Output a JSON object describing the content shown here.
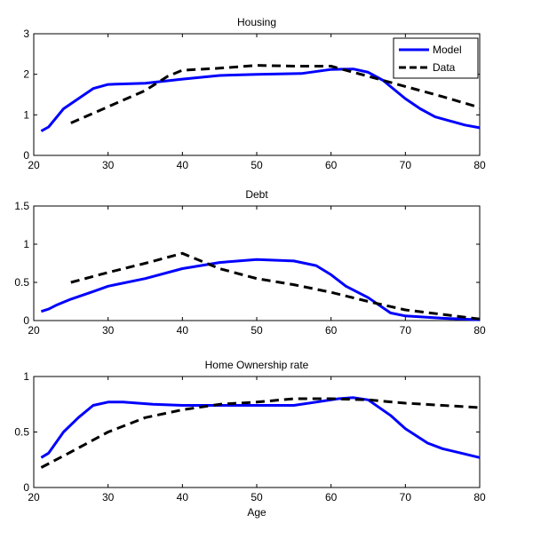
{
  "chart_data": [
    {
      "type": "line",
      "title": "Housing",
      "xlabel": "",
      "ylabel": "",
      "xlim": [
        20,
        80
      ],
      "ylim": [
        0,
        3
      ],
      "xticks": [
        20,
        30,
        40,
        50,
        60,
        70,
        80
      ],
      "yticks": [
        0,
        1,
        2,
        3
      ],
      "grid": false,
      "legend": "top-right",
      "series": [
        {
          "name": "Model",
          "color": "#0000ff",
          "style": "solid",
          "x": [
            21,
            22,
            24,
            26,
            28,
            30,
            35,
            40,
            45,
            50,
            56,
            60,
            63,
            65,
            67,
            70,
            72,
            74,
            76,
            78,
            80
          ],
          "y": [
            0.6,
            0.7,
            1.15,
            1.4,
            1.65,
            1.75,
            1.78,
            1.88,
            1.97,
            2.0,
            2.02,
            2.12,
            2.13,
            2.05,
            1.85,
            1.4,
            1.15,
            0.95,
            0.85,
            0.75,
            0.68
          ]
        },
        {
          "name": "Data",
          "color": "#000000",
          "style": "dashed",
          "x": [
            25,
            30,
            35,
            38,
            40,
            45,
            50,
            55,
            60,
            63,
            66,
            70,
            75,
            80
          ],
          "y": [
            0.8,
            1.2,
            1.6,
            1.95,
            2.1,
            2.15,
            2.22,
            2.2,
            2.2,
            2.05,
            1.9,
            1.7,
            1.45,
            1.18
          ]
        }
      ]
    },
    {
      "type": "line",
      "title": "Debt",
      "xlabel": "",
      "ylabel": "",
      "xlim": [
        20,
        80
      ],
      "ylim": [
        0,
        1.5
      ],
      "xticks": [
        20,
        30,
        40,
        50,
        60,
        70,
        80
      ],
      "yticks": [
        0,
        0.5,
        1,
        1.5
      ],
      "grid": false,
      "series": [
        {
          "color": "#0000ff",
          "style": "solid",
          "x": [
            21,
            22,
            23,
            25,
            28,
            30,
            35,
            40,
            45,
            50,
            55,
            58,
            60,
            62,
            65,
            68,
            70,
            75,
            80
          ],
          "y": [
            0.12,
            0.15,
            0.2,
            0.28,
            0.38,
            0.45,
            0.55,
            0.68,
            0.76,
            0.8,
            0.78,
            0.72,
            0.6,
            0.45,
            0.3,
            0.1,
            0.06,
            0.03,
            0.01
          ]
        },
        {
          "color": "#000000",
          "style": "dashed",
          "x": [
            25,
            30,
            35,
            40,
            45,
            50,
            55,
            60,
            65,
            70,
            75,
            80
          ],
          "y": [
            0.5,
            0.63,
            0.75,
            0.88,
            0.68,
            0.55,
            0.47,
            0.37,
            0.25,
            0.14,
            0.08,
            0.02
          ]
        }
      ]
    },
    {
      "type": "line",
      "title": "Home Ownership rate",
      "xlabel": "Age",
      "ylabel": "",
      "xlim": [
        20,
        80
      ],
      "ylim": [
        0,
        1
      ],
      "xticks": [
        20,
        30,
        40,
        50,
        60,
        70,
        80
      ],
      "yticks": [
        0,
        0.5,
        1
      ],
      "grid": false,
      "series": [
        {
          "color": "#0000ff",
          "style": "solid",
          "x": [
            21,
            22,
            24,
            26,
            28,
            30,
            32,
            36,
            40,
            45,
            50,
            55,
            58,
            61,
            63,
            65,
            68,
            70,
            73,
            75,
            80
          ],
          "y": [
            0.27,
            0.31,
            0.5,
            0.63,
            0.74,
            0.77,
            0.77,
            0.75,
            0.74,
            0.74,
            0.74,
            0.74,
            0.77,
            0.8,
            0.81,
            0.79,
            0.65,
            0.53,
            0.4,
            0.35,
            0.27
          ]
        },
        {
          "color": "#000000",
          "style": "dashed",
          "x": [
            21,
            25,
            30,
            35,
            40,
            45,
            50,
            55,
            60,
            65,
            70,
            75,
            80
          ],
          "y": [
            0.18,
            0.32,
            0.5,
            0.63,
            0.7,
            0.75,
            0.77,
            0.8,
            0.8,
            0.79,
            0.76,
            0.74,
            0.72
          ]
        }
      ]
    }
  ]
}
